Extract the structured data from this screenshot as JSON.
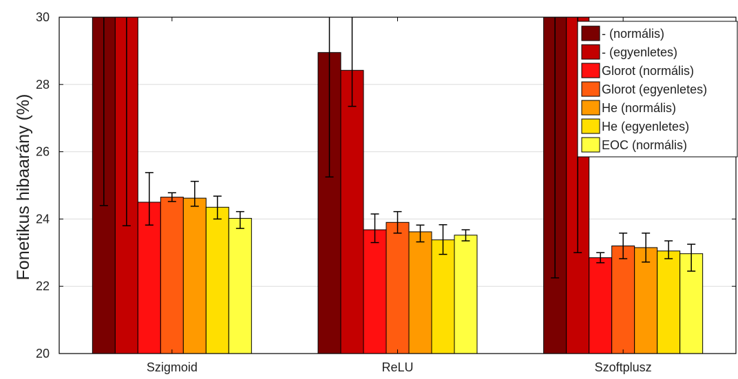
{
  "chart_data": {
    "type": "bar",
    "title": "",
    "xlabel": "",
    "ylabel": "Fonetikus hibaarány (%)",
    "ylim": [
      20,
      30
    ],
    "yticks": [
      20,
      22,
      24,
      26,
      28,
      30
    ],
    "grid": true,
    "legend_position": "top-right",
    "categories": [
      "Szigmoid",
      "ReLU",
      "Szoftplusz"
    ],
    "series": [
      {
        "name": "- (normális)",
        "color": "#7a0000",
        "values": [
          30,
          28.95,
          30
        ],
        "err_low": [
          24.4,
          25.25,
          22.25
        ],
        "err_high": [
          30,
          30,
          30
        ]
      },
      {
        "name": "- (egyenletes)",
        "color": "#c40000",
        "values": [
          30,
          28.42,
          30
        ],
        "err_low": [
          23.8,
          27.35,
          23.0
        ],
        "err_high": [
          30,
          30,
          30
        ]
      },
      {
        "name": "Glorot (normális)",
        "color": "#ff1010",
        "values": [
          24.5,
          23.68,
          22.85
        ],
        "err_low": [
          23.82,
          23.3,
          22.7
        ],
        "err_high": [
          25.38,
          24.15,
          23.0
        ]
      },
      {
        "name": "Glorot (egyenletes)",
        "color": "#ff5c10",
        "values": [
          24.65,
          23.9,
          23.2
        ],
        "err_low": [
          24.52,
          23.58,
          22.82
        ],
        "err_high": [
          24.78,
          24.22,
          23.58
        ]
      },
      {
        "name": "He (normális)",
        "color": "#ff9a00",
        "values": [
          24.62,
          23.62,
          23.15
        ],
        "err_low": [
          24.38,
          23.32,
          22.72
        ],
        "err_high": [
          25.12,
          23.82,
          23.58
        ]
      },
      {
        "name": "He (egyenletes)",
        "color": "#ffdf00",
        "values": [
          24.35,
          23.38,
          23.05
        ],
        "err_low": [
          24.0,
          22.95,
          22.82
        ],
        "err_high": [
          24.68,
          23.83,
          23.35
        ]
      },
      {
        "name": "EOC (normális)",
        "color": "#ffff40",
        "values": [
          24.02,
          23.52,
          22.97
        ],
        "err_low": [
          23.72,
          23.35,
          22.45
        ],
        "err_high": [
          24.22,
          23.68,
          23.25
        ]
      }
    ]
  }
}
